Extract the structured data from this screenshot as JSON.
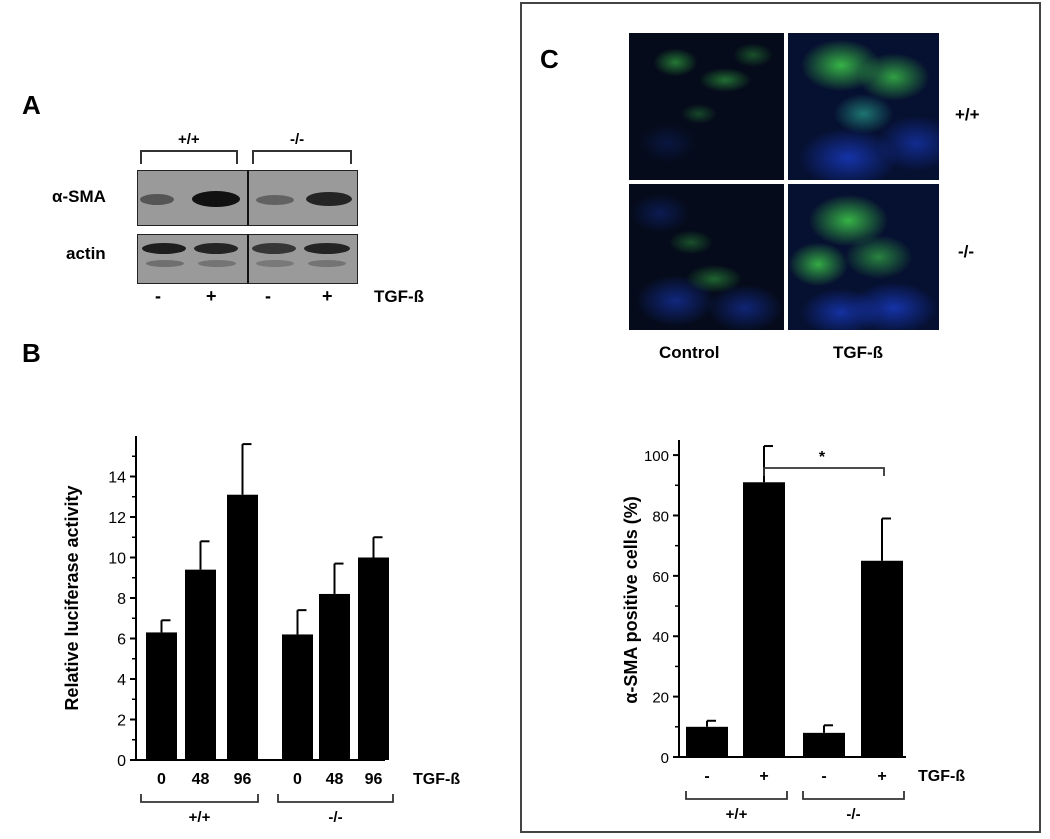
{
  "panels": {
    "a": "A",
    "b": "B",
    "c": "C"
  },
  "blot": {
    "genotypes": [
      "+/+",
      "-/-"
    ],
    "rows": [
      "α-SMA",
      "actin"
    ],
    "treatment_signs": [
      "-",
      "+",
      "-",
      "+"
    ],
    "treatment_label": "TGF-ß"
  },
  "micrographs": {
    "columns": [
      "Control",
      "TGF-ß"
    ],
    "rows": [
      "+/+",
      "-/-"
    ]
  },
  "colors": {
    "bar": "#000000",
    "blot_bg": "#9a9a9a",
    "fluor_green": "#3fd04a",
    "fluor_blue": "#1a3fd0",
    "micro_bg": "#050b1a"
  },
  "chart_data": [
    {
      "type": "bar",
      "panel": "B",
      "ylabel": "Relative luciferase activity",
      "ylim": [
        0,
        16
      ],
      "yticks": [
        0,
        2,
        4,
        6,
        8,
        10,
        12,
        14
      ],
      "categories": [
        "0",
        "48",
        "96",
        "0",
        "48",
        "96"
      ],
      "groups": [
        "+/+",
        "-/-"
      ],
      "treatment_label": "TGF-ß",
      "values": [
        6.3,
        9.4,
        13.1,
        6.2,
        8.2,
        10.0
      ],
      "errors": [
        0.6,
        1.4,
        2.5,
        1.2,
        1.5,
        1.0
      ]
    },
    {
      "type": "bar",
      "panel": "C",
      "ylabel": "α-SMA positive cells (%)",
      "ylim": [
        0,
        105
      ],
      "yticks": [
        0,
        20,
        40,
        60,
        80,
        100
      ],
      "categories": [
        "-",
        "+",
        "-",
        "+"
      ],
      "groups": [
        "+/+",
        "-/-"
      ],
      "treatment_label": "TGF-ß",
      "values": [
        10,
        91,
        8,
        65
      ],
      "errors": [
        2,
        12,
        2.5,
        14
      ],
      "significance": "*"
    }
  ]
}
